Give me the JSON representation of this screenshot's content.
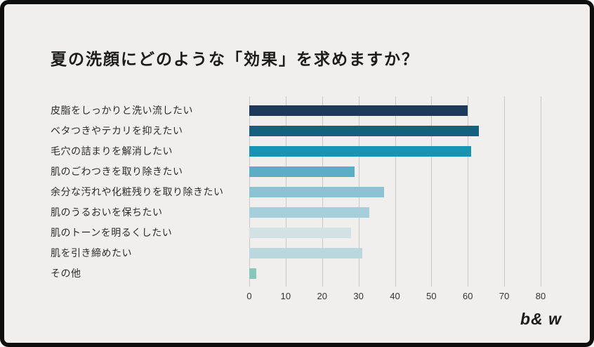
{
  "title": "夏の洗顔にどのような「効果」を求めますか？",
  "logo": "b& w",
  "colors": {
    "background": "#f0efed",
    "frame_border": "#0e0e0e",
    "gridline": "#c7c7c5",
    "text": "#2c2c2c"
  },
  "chart_data": {
    "type": "bar",
    "orientation": "horizontal",
    "title": "夏の洗顔にどのような「効果」を求めますか？",
    "categories": [
      "皮脂をしっかりと洗い流したい",
      "ベタつきやテカリを抑えたい",
      "毛穴の詰まりを解消したい",
      "肌のごわつきを取り除きたい",
      "余分な汚れや化粧残りを取り除きたい",
      "肌のうるおいを保ちたい",
      "肌のトーンを明るくしたい",
      "肌を引き締めたい",
      "その他"
    ],
    "values": [
      60,
      63,
      61,
      29,
      37,
      33,
      28,
      31,
      2
    ],
    "bar_colors": [
      "#1e3a5a",
      "#14607f",
      "#1793b4",
      "#5cadc6",
      "#8cc3d2",
      "#a6cfda",
      "#d2e1e4",
      "#b9d8de",
      "#83c8b8"
    ],
    "xlabel": "",
    "ylabel": "",
    "xlim": [
      0,
      80
    ],
    "xticks": [
      0,
      10,
      20,
      30,
      40,
      50,
      60,
      70,
      80
    ],
    "grid": true,
    "legend": false
  }
}
